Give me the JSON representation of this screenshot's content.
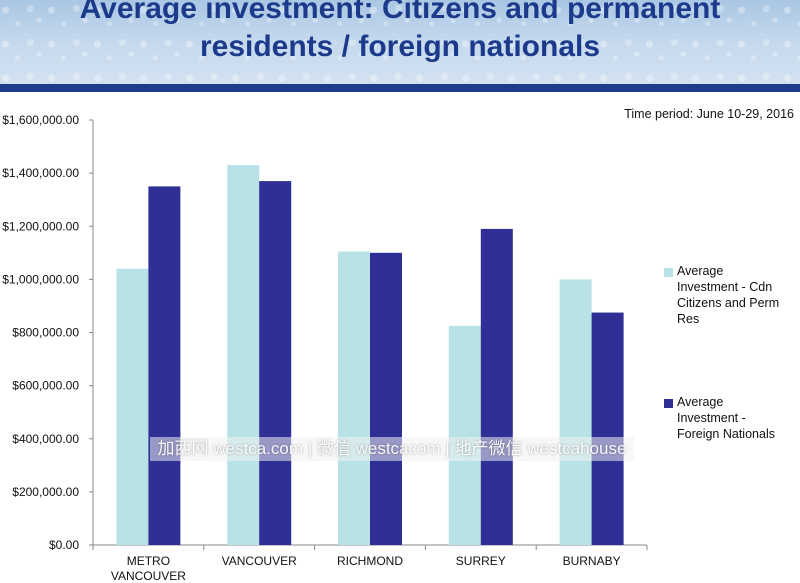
{
  "header": {
    "title_line1": "Average investment: Citizens and permanent",
    "title_line2": "residents / foreign nationals",
    "banner_color": "#c3d7ec",
    "title_color": "#1c3a8c"
  },
  "time_period": "Time period: June 10-29, 2016",
  "watermark": "加西网 westca.com | 微信 westcacom | 地产微信 westcahouse",
  "chart_data": {
    "type": "bar",
    "title": "",
    "xlabel": "",
    "ylabel": "",
    "categories": [
      "METRO VANCOUVER",
      "VANCOUVER",
      "RICHMOND",
      "SURREY",
      "BURNABY"
    ],
    "category_lines": [
      [
        "METRO",
        "VANCOUVER"
      ],
      [
        "VANCOUVER"
      ],
      [
        "RICHMOND"
      ],
      [
        "SURREY"
      ],
      [
        "BURNABY"
      ]
    ],
    "series": [
      {
        "name": "Average Investment - Cdn Citizens and Perm Res",
        "legend_lines": [
          "Average",
          "Investment - Cdn",
          "Citizens and Perm",
          "Res"
        ],
        "color": "#b8e2e6",
        "values": [
          1040000,
          1430000,
          1105000,
          825000,
          1000000
        ]
      },
      {
        "name": "Average Investment - Foreign Nationals",
        "legend_lines": [
          "Average",
          "Investment -",
          "Foreign Nationals"
        ],
        "color": "#2f2f96",
        "values": [
          1350000,
          1370000,
          1100000,
          1190000,
          875000
        ]
      }
    ],
    "ylim": [
      0,
      1600000
    ],
    "yticks": [
      0,
      200000,
      400000,
      600000,
      800000,
      1000000,
      1200000,
      1400000,
      1600000
    ],
    "ytick_labels": [
      "$0.00",
      "$200,000.00",
      "$400,000.00",
      "$600,000.00",
      "$800,000.00",
      "$1,000,000.00",
      "$1,200,000.00",
      "$1,400,000.00",
      "$1,600,000.00"
    ],
    "grid": false,
    "legend_position": "right"
  }
}
